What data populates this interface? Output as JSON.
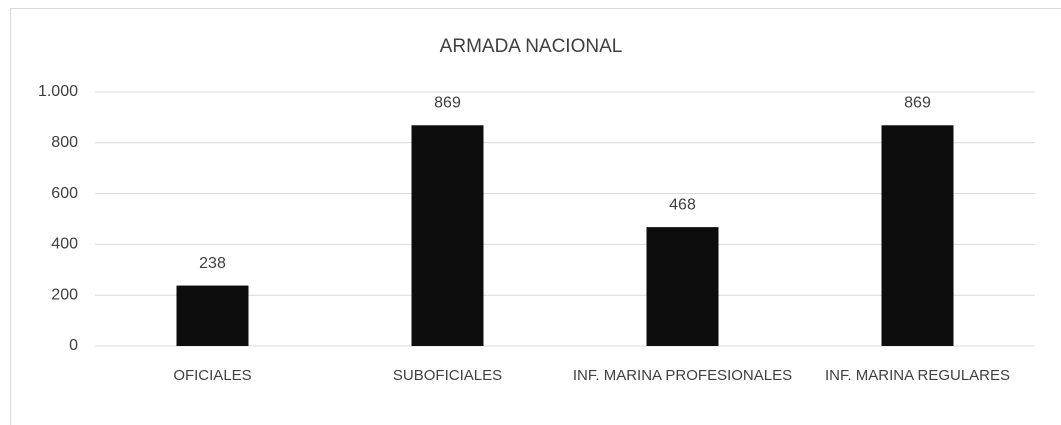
{
  "chart_data": {
    "type": "bar",
    "title": "ARMADA NACIONAL",
    "categories": [
      "OFICIALES",
      "SUBOFICIALES",
      "INF. MARINA PROFESIONALES",
      "INF. MARINA REGULARES"
    ],
    "values": [
      238,
      869,
      468,
      869
    ],
    "color": "#0d0d0d",
    "ylim": [
      0,
      1000
    ],
    "yticks": [
      0,
      200,
      400,
      600,
      800,
      {
        "value": 1000,
        "label": "1.000"
      }
    ],
    "grid": true
  }
}
